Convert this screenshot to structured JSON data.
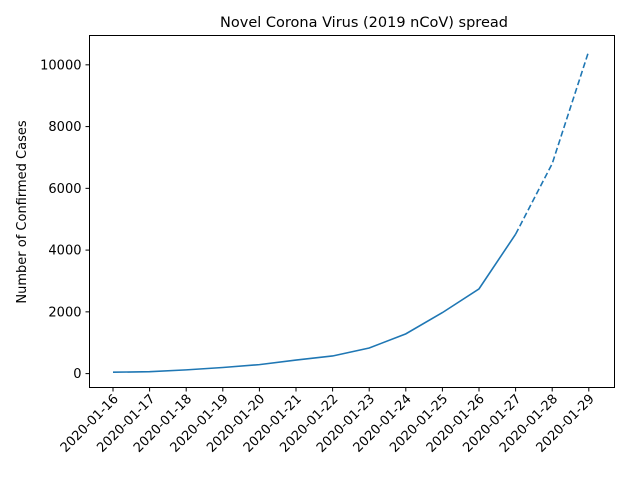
{
  "chart_data": {
    "type": "line",
    "title": "Novel Corona Virus (2019 nCoV) spread",
    "xlabel": "",
    "ylabel": "Number of Confirmed Cases",
    "categories": [
      "2020-01-16",
      "2020-01-17",
      "2020-01-18",
      "2020-01-19",
      "2020-01-20",
      "2020-01-21",
      "2020-01-22",
      "2020-01-23",
      "2020-01-24",
      "2020-01-25",
      "2020-01-26",
      "2020-01-27",
      "2020-01-28",
      "2020-01-29"
    ],
    "yticks": [
      0,
      2000,
      4000,
      6000,
      8000,
      10000
    ],
    "ylim": [
      -450,
      10950
    ],
    "grid": false,
    "series": [
      {
        "style": "solid",
        "color": "#1f77b4",
        "x": [
          "2020-01-16",
          "2020-01-17",
          "2020-01-18",
          "2020-01-19",
          "2020-01-20",
          "2020-01-21",
          "2020-01-22",
          "2020-01-23",
          "2020-01-24",
          "2020-01-25",
          "2020-01-26",
          "2020-01-27"
        ],
        "values": [
          45,
          62,
          121,
          198,
          291,
          440,
          571,
          830,
          1287,
          1975,
          2744,
          4515
        ]
      },
      {
        "style": "dashed",
        "color": "#1f77b4",
        "x": [
          "2020-01-27",
          "2020-01-28",
          "2020-01-29"
        ],
        "values": [
          4515,
          6800,
          10450
        ]
      }
    ]
  }
}
